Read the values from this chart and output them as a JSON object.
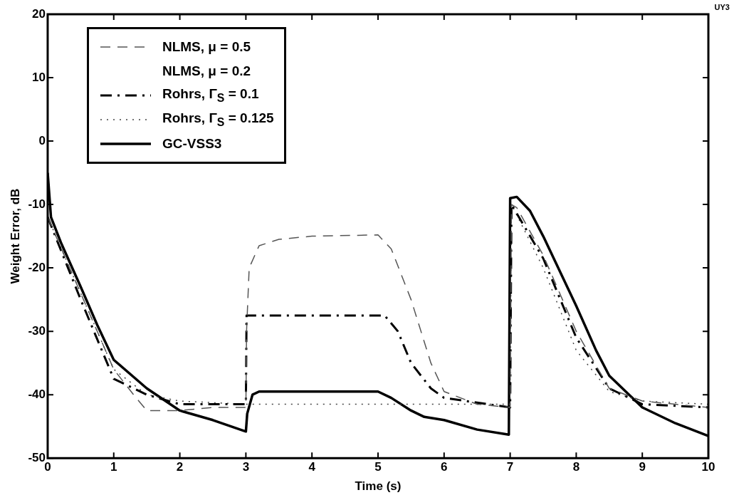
{
  "chart_data": {
    "type": "line",
    "xlabel": "Time (s)",
    "ylabel": "Weight Error, dB",
    "annotations": [
      "UY3"
    ],
    "xlim": [
      0,
      10
    ],
    "xticks": [
      0,
      1,
      2,
      3,
      4,
      5,
      6,
      7,
      8,
      9,
      10
    ],
    "ylim": [
      -50,
      20
    ],
    "yticks": [
      -50,
      -40,
      -30,
      -20,
      -10,
      0,
      10,
      20
    ],
    "grid": false,
    "legend": "top left",
    "marker": "none",
    "series": [
      {
        "name": "NLMS, μ = 0.5",
        "color": "#555555",
        "line_style": "dashed",
        "x": [
          0,
          0.5,
          1,
          1.3,
          1.5,
          2,
          2.5,
          3,
          3.01,
          3.05,
          3.2,
          3.5,
          4,
          5,
          5.2,
          5.5,
          5.8,
          6,
          6.5,
          7,
          7.02,
          7.1,
          7.5,
          8,
          8.5,
          9,
          10
        ],
        "values": [
          -12,
          -24,
          -36,
          -40,
          -42.5,
          -42.5,
          -42,
          -42,
          -30,
          -20,
          -16.5,
          -15.5,
          -15,
          -14.8,
          -17,
          -25,
          -35,
          -39.5,
          -41.5,
          -42,
          -10,
          -10.5,
          -18,
          -30,
          -39,
          -41,
          -42
        ]
      },
      {
        "name": "NLMS, μ = 0.2"
      },
      {
        "name": "Rohrs, Γ$_{S}$ = 0.1",
        "color": "#000000",
        "line_style": "dashdot",
        "x": [
          0,
          0.5,
          1,
          1.5,
          2,
          3,
          3.01,
          5.1,
          5.3,
          5.5,
          5.8,
          6,
          7,
          7.02,
          7.5,
          8,
          8.5,
          9,
          10
        ],
        "values": [
          -12,
          -25,
          -37.5,
          -40,
          -41.5,
          -41.5,
          -27.5,
          -27.5,
          -30,
          -35,
          -39,
          -40.5,
          -42,
          -10,
          -18.5,
          -31,
          -39,
          -41.5,
          -42
        ]
      },
      {
        "name": "Rohrs, Γ$_{S}$ = 0.125",
        "color": "#444444",
        "line_style": "dotted",
        "x": [
          0,
          0.5,
          1,
          1.5,
          2,
          3,
          7,
          7.02,
          7.5,
          8,
          8.5,
          9,
          10
        ],
        "values": [
          -12,
          -24,
          -36,
          -40,
          -41,
          -41.5,
          -41.5,
          -10,
          -20,
          -33,
          -39.5,
          -41,
          -41.5
        ]
      },
      {
        "name": "GC-VSS3",
        "color": "#000000",
        "line_style": "solid",
        "x": [
          0,
          0.05,
          0.2,
          0.5,
          0.75,
          1,
          1.5,
          2,
          2.5,
          3,
          3.02,
          3.1,
          3.2,
          4,
          5,
          5.2,
          5.5,
          5.7,
          6,
          6.5,
          6.98,
          7,
          7.1,
          7.3,
          7.5,
          8,
          8.3,
          8.5,
          9,
          9.5,
          10
        ],
        "values": [
          -5,
          -12,
          -16,
          -23,
          -29,
          -34.5,
          -39,
          -42.5,
          -44,
          -45.8,
          -43,
          -40,
          -39.5,
          -39.5,
          -39.5,
          -40.5,
          -42.5,
          -43.5,
          -44,
          -45.5,
          -46.3,
          -9,
          -8.8,
          -11,
          -15,
          -26,
          -33,
          -37,
          -42,
          -44.5,
          -46.5
        ]
      }
    ]
  }
}
